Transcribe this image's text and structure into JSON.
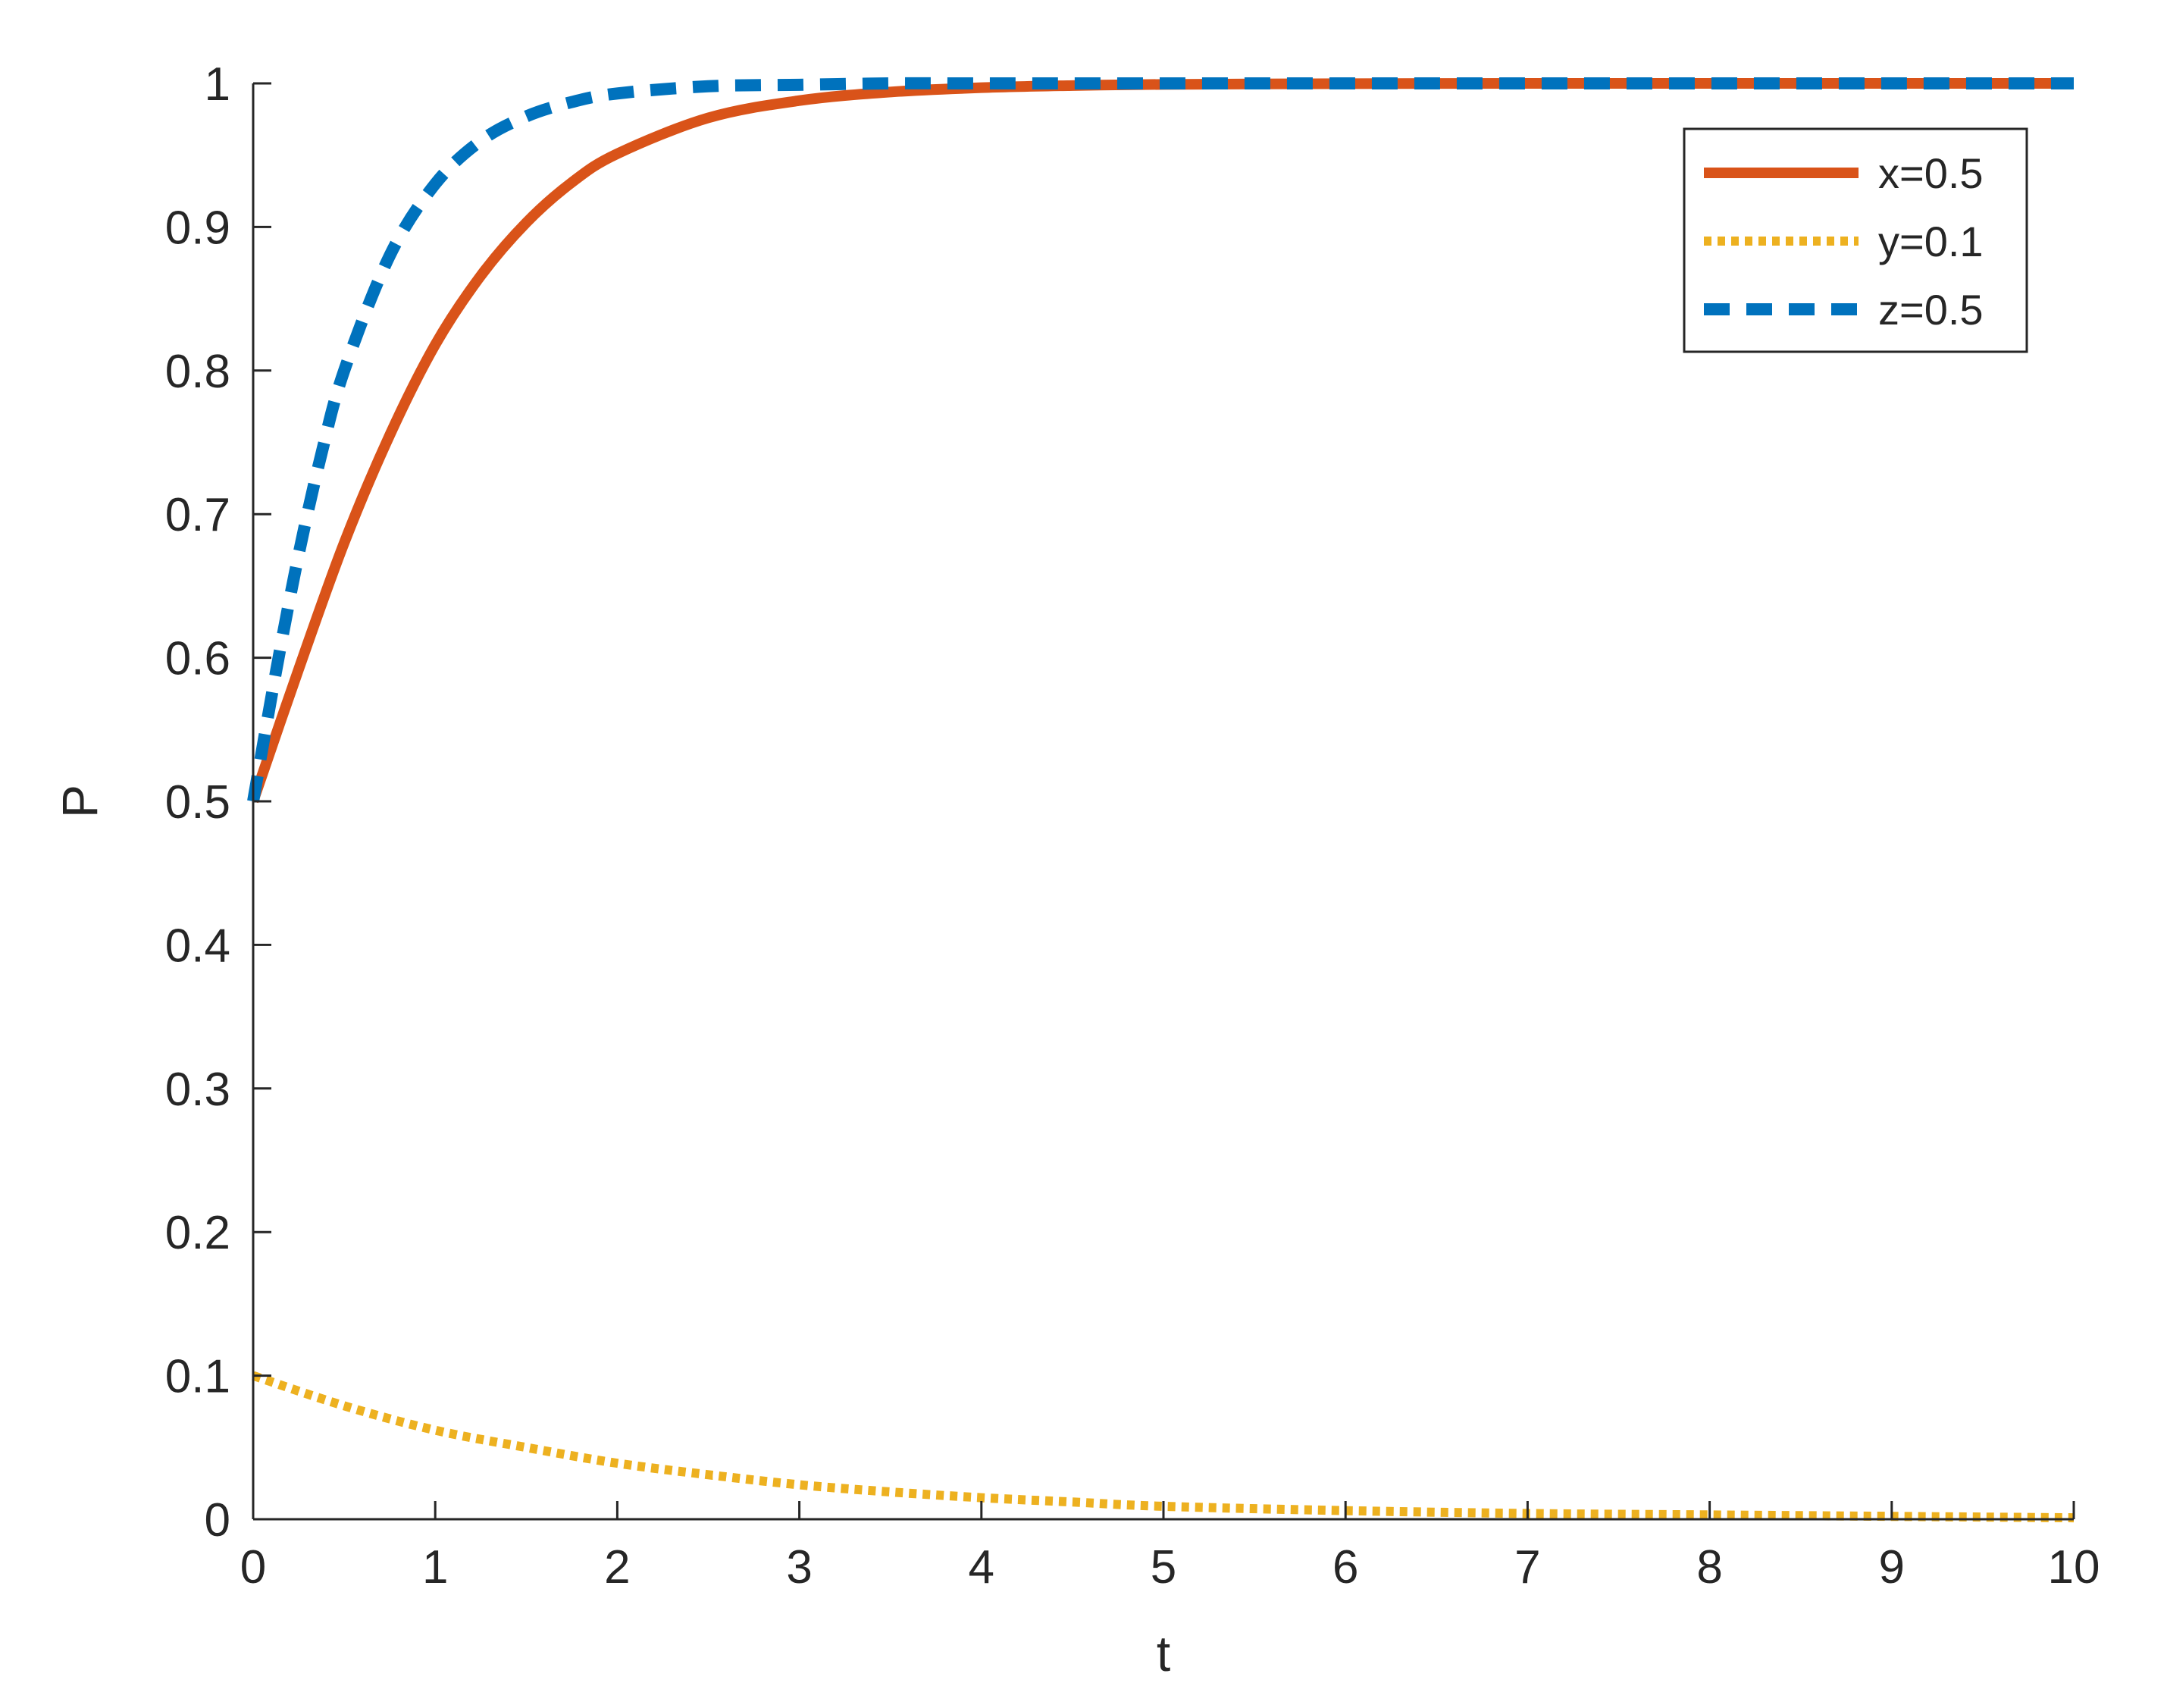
{
  "chart_data": {
    "type": "line",
    "title": "",
    "xlabel": "t",
    "ylabel": "P",
    "xlim": [
      0,
      10
    ],
    "ylim": [
      0,
      1
    ],
    "xticks": [
      0,
      1,
      2,
      3,
      4,
      5,
      6,
      7,
      8,
      9,
      10
    ],
    "yticks": [
      0,
      0.1,
      0.2,
      0.3,
      0.4,
      0.5,
      0.6,
      0.7,
      0.8,
      0.9,
      1
    ],
    "xtick_labels": [
      "0",
      "1",
      "2",
      "3",
      "4",
      "5",
      "6",
      "7",
      "8",
      "9",
      "10"
    ],
    "ytick_labels": [
      "0",
      "0.1",
      "0.2",
      "0.3",
      "0.4",
      "0.5",
      "0.6",
      "0.7",
      "0.8",
      "0.9",
      "1"
    ],
    "grid": false,
    "legend_position": "top-right",
    "series": [
      {
        "name": "x=0.5",
        "color": "#D95319",
        "style": "solid",
        "x": [
          0,
          0.25,
          0.5,
          0.75,
          1,
          1.25,
          1.5,
          1.75,
          2,
          2.5,
          3,
          3.5,
          4,
          4.5,
          5,
          6,
          7,
          8,
          9,
          10
        ],
        "y": [
          0.5,
          0.592,
          0.68,
          0.755,
          0.818,
          0.866,
          0.903,
          0.931,
          0.951,
          0.976,
          0.988,
          0.994,
          0.997,
          0.9985,
          0.9993,
          0.9998,
          1,
          1,
          1,
          1
        ]
      },
      {
        "name": "y=0.1",
        "color": "#EDB120",
        "style": "dotted",
        "x": [
          0,
          0.5,
          1,
          1.5,
          2,
          2.5,
          3,
          3.5,
          4,
          4.5,
          5,
          6,
          7,
          8,
          9,
          10
        ],
        "y": [
          0.1,
          0.079,
          0.062,
          0.05,
          0.039,
          0.031,
          0.024,
          0.019,
          0.015,
          0.012,
          0.009,
          0.006,
          0.004,
          0.003,
          0.002,
          0.001
        ]
      },
      {
        "name": "z=0.5",
        "color": "#0072BD",
        "style": "dashed",
        "x": [
          0,
          0.125,
          0.25,
          0.375,
          0.5,
          0.75,
          1,
          1.25,
          1.5,
          1.75,
          2,
          2.5,
          3,
          3.5,
          4,
          5,
          6,
          7,
          8,
          9,
          10
        ],
        "y": [
          0.5,
          0.59,
          0.672,
          0.742,
          0.8,
          0.88,
          0.93,
          0.96,
          0.977,
          0.987,
          0.993,
          0.998,
          0.999,
          1,
          1,
          1,
          1,
          1,
          1,
          1,
          1
        ]
      }
    ]
  }
}
